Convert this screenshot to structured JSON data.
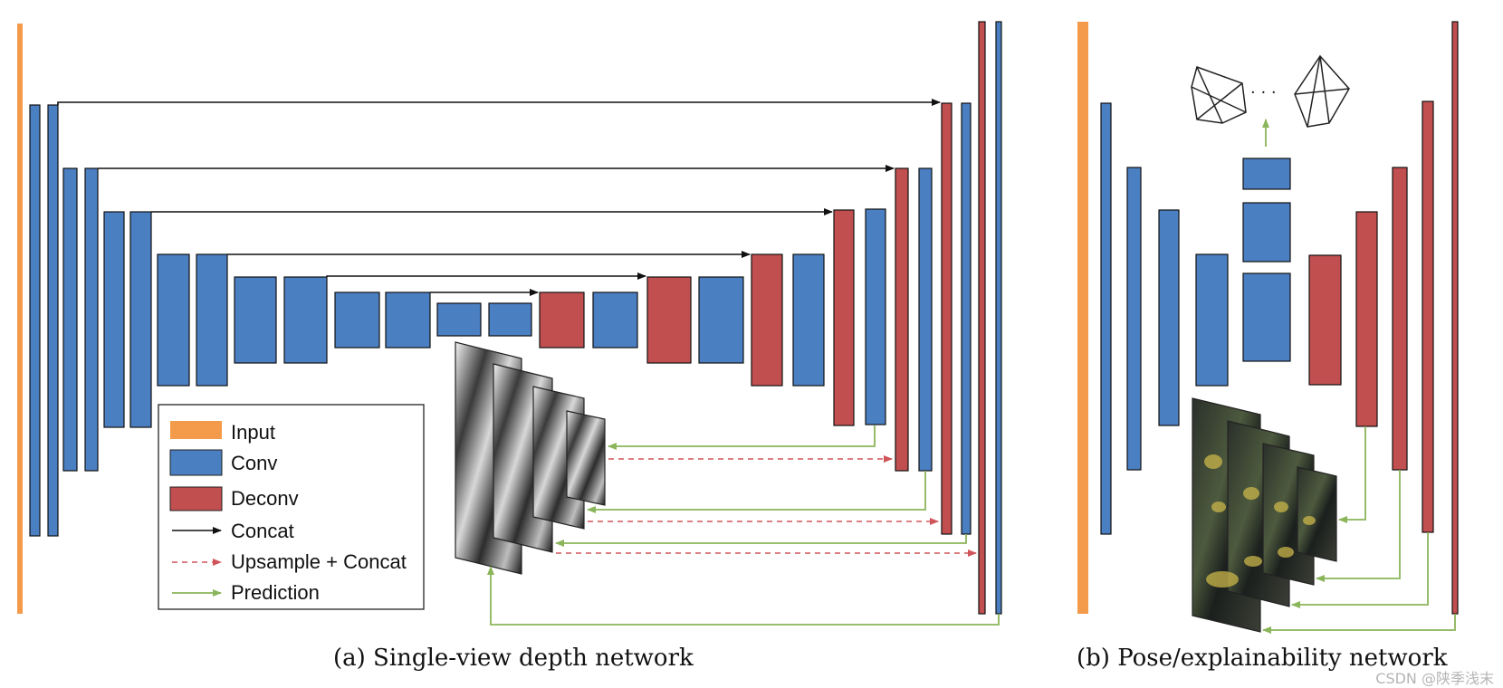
{
  "colors": {
    "input": "#f39a4b",
    "conv": "#4a7fc1",
    "deconv": "#c14f50",
    "concat": "#111111",
    "upsample": "#d0555a",
    "prediction": "#8ab55a"
  },
  "legend": {
    "items": [
      {
        "label": "Input",
        "kind": "input"
      },
      {
        "label": "Conv",
        "kind": "conv"
      },
      {
        "label": "Deconv",
        "kind": "deconv"
      },
      {
        "label": "Concat",
        "kind": "concat"
      },
      {
        "label": "Upsample + Concat",
        "kind": "upsample"
      },
      {
        "label": "Prediction",
        "kind": "prediction"
      }
    ]
  },
  "pose_dots": "· · ·",
  "captions": {
    "a": "(a) Single-view depth network",
    "b": "(b) Pose/explainability network"
  },
  "watermark": "CSDN @陕季浅末"
}
